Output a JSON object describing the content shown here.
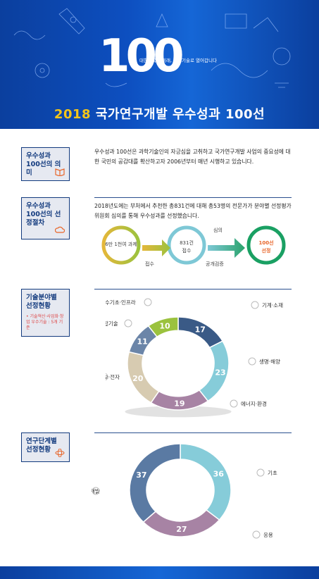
{
  "hero": {
    "big": "100",
    "tagline": "대한민국의 미래, 과학기술로 열어갑니다",
    "title_year": "2018",
    "title_main": "국가연구개발 우수성과 100선"
  },
  "sec1": {
    "label": "우수성과 100선의 의미",
    "text": "우수성과 100선은 과학기술인의 자긍심을 고취하고 국가연구개발 사업의 중요성에 대한 국민의 공감대를 확산하고자 2006년부터 매년 시행하고 있습니다."
  },
  "sec2": {
    "label": "우수성과 100선의 선정절차",
    "text": "2018년도에는 부처에서 추천한 총831건에 대해 총53명의 전문가가 분야별 선정평가위원회 심의를 통해 우수성과를 선정했습니다.",
    "step1": "6만 1천여 과제",
    "step2a": "831건",
    "step2b": "접수",
    "step3a": "100선",
    "step3b": "선정",
    "arrow1": "접수",
    "arrow2": "공개검증",
    "arrow3": "심의"
  },
  "sec3": {
    "label": "기술분야별 선정현황",
    "note": "• 기술혁신·사업화·창업 우수기술 : 5개 기준",
    "chart_data": {
      "type": "pie",
      "categories": [
        "기계·소재",
        "생명·해양",
        "에너지·환경",
        "정보·전자",
        "융합기술",
        "순수기초·인프라"
      ],
      "values": [
        17,
        23,
        19,
        20,
        11,
        10
      ],
      "colors": [
        "#3a5a86",
        "#86ccd9",
        "#a783a4",
        "#d7cbb1",
        "#6b85a8",
        "#9bc23e"
      ]
    }
  },
  "sec4": {
    "label": "연구단계별 선정현황",
    "chart_data": {
      "type": "pie",
      "categories": [
        "기초",
        "응용",
        "개발"
      ],
      "values": [
        36,
        27,
        37
      ],
      "colors": [
        "#86ccd9",
        "#a783a4",
        "#5a7aa3"
      ]
    }
  }
}
